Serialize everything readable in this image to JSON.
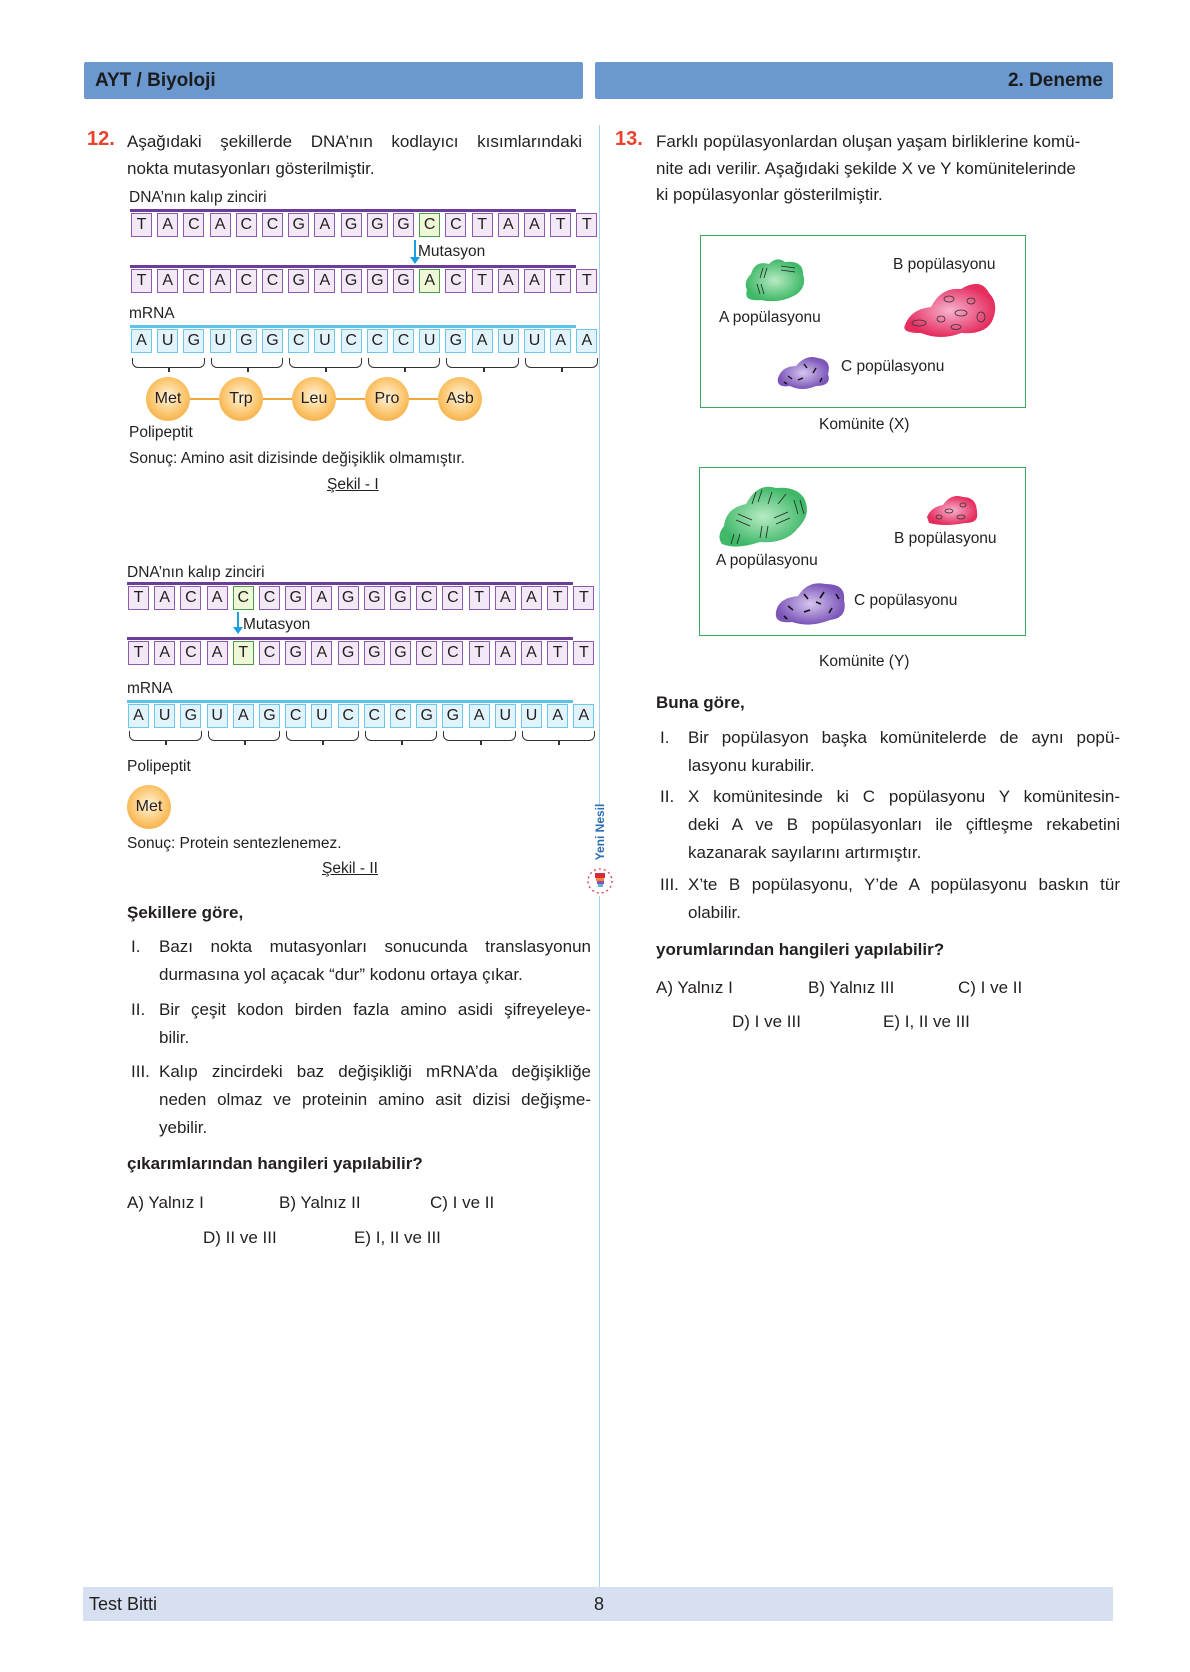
{
  "header": {
    "left": "AYT / Biyoloji",
    "right": "2. Deneme"
  },
  "footer": {
    "left": "Test Bitti",
    "page": "8"
  },
  "logo": {
    "text": "Yeni Nesil"
  },
  "colors": {
    "header": "#6a98cf",
    "footer": "#d6e0f0",
    "qnum": "#e8412c",
    "dna": "#8c5aaf",
    "rna": "#6ec6ea",
    "mutation": "#4e9a48",
    "community_border": "#3aaa5c"
  },
  "q12": {
    "number": "12.",
    "stem": [
      "Aşağıdaki şekillerde DNA’nın kodlayıcı kısımlarındaki",
      "nokta mutasyonları gösterilmiştir."
    ],
    "fig1": {
      "dna_label": "DNA’nın kalıp zinciri",
      "dna_original": [
        "T",
        "A",
        "C",
        "A",
        "C",
        "C",
        "G",
        "A",
        "G",
        "G",
        "G",
        "C",
        "C",
        "T",
        "A",
        "A",
        "T",
        "T"
      ],
      "mutation_label": "Mutasyon",
      "mutation_index": 11,
      "dna_mutated": [
        "T",
        "A",
        "C",
        "A",
        "C",
        "C",
        "G",
        "A",
        "G",
        "G",
        "G",
        "A",
        "C",
        "T",
        "A",
        "A",
        "T",
        "T"
      ],
      "mrna_label": "mRNA",
      "mrna": [
        "A",
        "U",
        "G",
        "U",
        "G",
        "G",
        "C",
        "U",
        "C",
        "C",
        "C",
        "U",
        "G",
        "A",
        "U",
        "U",
        "A",
        "A"
      ],
      "amino_acids": [
        "Met",
        "Trp",
        "Leu",
        "Pro",
        "Asb"
      ],
      "polypeptide_label": "Polipeptit",
      "result": "Sonuç: Amino asit dizisinde değişiklik olmamıştır.",
      "caption": "Şekil - I"
    },
    "fig2": {
      "dna_label": "DNA’nın kalıp zinciri",
      "dna_original": [
        "T",
        "A",
        "C",
        "A",
        "C",
        "C",
        "G",
        "A",
        "G",
        "G",
        "G",
        "C",
        "C",
        "T",
        "A",
        "A",
        "T",
        "T"
      ],
      "mutation_label": "Mutasyon",
      "mutation_index": 4,
      "dna_mutated": [
        "T",
        "A",
        "C",
        "A",
        "T",
        "C",
        "G",
        "A",
        "G",
        "G",
        "G",
        "C",
        "C",
        "T",
        "A",
        "A",
        "T",
        "T"
      ],
      "mrna_label": "mRNA",
      "mrna": [
        "A",
        "U",
        "G",
        "U",
        "A",
        "G",
        "C",
        "U",
        "C",
        "C",
        "C",
        "G",
        "G",
        "A",
        "U",
        "U",
        "A",
        "A"
      ],
      "polypeptide_label": "Polipeptit",
      "amino_acids": [
        "Met"
      ],
      "result": "Sonuç: Protein sentezlenemez.",
      "caption": "Şekil - II"
    },
    "lead": "Şekillere göre,",
    "statements": [
      {
        "num": "I.",
        "lines": [
          "Bazı nokta mutasyonları sonucunda translasyonun",
          "durmasına yol açacak “dur” kodonu ortaya çıkar."
        ]
      },
      {
        "num": "II.",
        "lines": [
          "Bir çeşit kodon birden fazla amino asidi şifreyeleye-",
          "bilir."
        ]
      },
      {
        "num": "III.",
        "lines": [
          "Kalıp zincirdeki baz değişikliği mRNA’da değişikliğe",
          "neden olmaz ve proteinin amino asit dizisi değişme-",
          "yebilir."
        ]
      }
    ],
    "question": "çıkarımlarından hangileri yapılabilir?",
    "options": [
      "A) Yalnız I",
      "B) Yalnız II",
      "C) I ve II",
      "D) II ve III",
      "E) I, II ve III"
    ]
  },
  "q13": {
    "number": "13.",
    "stem": [
      "Farklı popülasyonlardan oluşan yaşam birliklerine komü-",
      "nite adı verilir. Aşağıdaki şekilde X ve Y komünitelerinde",
      "ki popülasyonlar gösterilmiştir."
    ],
    "community_x": {
      "a": "A popülasyonu",
      "b": "B popülasyonu",
      "c": "C popülasyonu",
      "caption": "Komünite (X)"
    },
    "community_y": {
      "a": "A popülasyonu",
      "b": "B popülasyonu",
      "c": "C popülasyonu",
      "caption": "Komünite (Y)"
    },
    "lead": "Buna göre,",
    "statements": [
      {
        "num": "I.",
        "lines": [
          "Bir popülasyon başka komünitelerde de aynı popü-",
          "lasyonu kurabilir."
        ]
      },
      {
        "num": "II.",
        "lines": [
          "X komünitesinde ki C popülasyonu Y komünitesin-",
          "deki A ve B popülasyonları ile çiftleşme rekabetini",
          "kazanarak sayılarını artırmıştır."
        ]
      },
      {
        "num": "III.",
        "lines": [
          "X’te B popülasyonu, Y’de A popülasyonu baskın tür",
          "olabilir."
        ]
      }
    ],
    "question": "yorumlarından hangileri yapılabilir?",
    "options": [
      "A) Yalnız I",
      "B) Yalnız III",
      "C) I ve II",
      "D) I ve III",
      "E) I, II ve III"
    ]
  }
}
